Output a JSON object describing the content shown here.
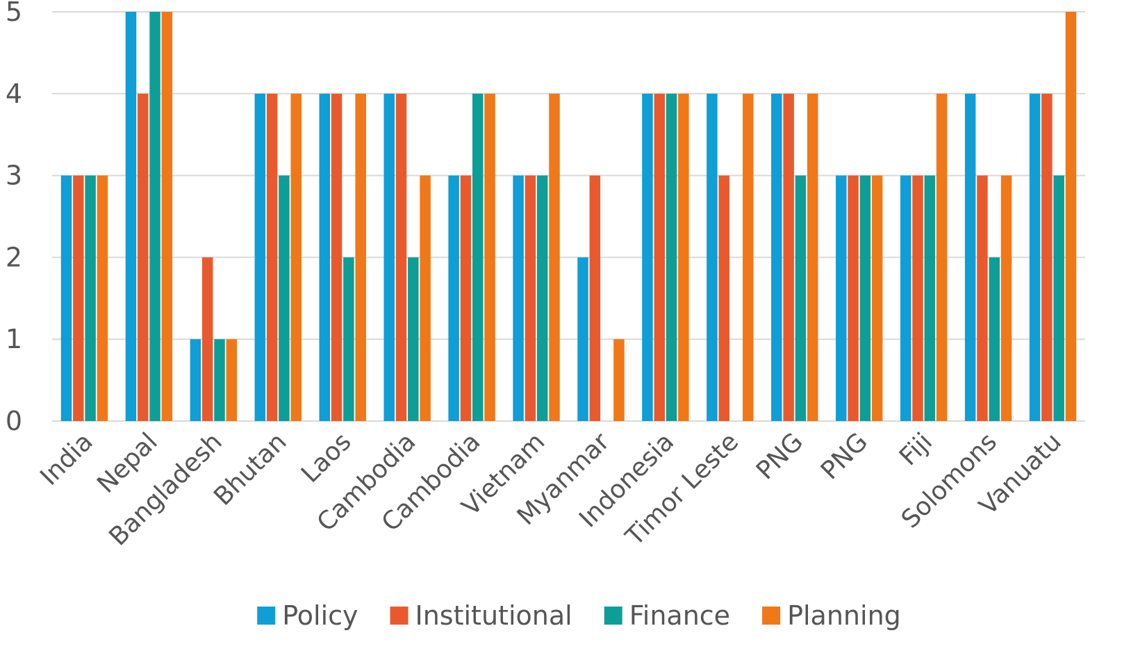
{
  "chart_data": {
    "type": "bar",
    "title": "",
    "xlabel": "",
    "ylabel": "",
    "ylim": [
      0,
      5
    ],
    "yticks": [
      0,
      1,
      2,
      3,
      4,
      5
    ],
    "grid": true,
    "legend_position": "bottom",
    "categories": [
      "India",
      "Nepal",
      "Bangladesh",
      "Bhutan",
      "Laos",
      "Cambodia",
      "Cambodia",
      "Vietnam",
      "Myanmar",
      "Indonesia",
      "Timor Leste",
      "PNG",
      "PNG",
      "Fiji",
      "Solomons",
      "Vanuatu"
    ],
    "series": [
      {
        "name": "Policy",
        "color": "#0f9ed5",
        "values": [
          3,
          5,
          1,
          4,
          4,
          4,
          3,
          3,
          2,
          4,
          4,
          4,
          3,
          3,
          4,
          4
        ]
      },
      {
        "name": "Institutional",
        "color": "#e85a2d",
        "values": [
          3,
          4,
          2,
          4,
          4,
          4,
          3,
          3,
          3,
          4,
          3,
          4,
          3,
          3,
          3,
          4
        ]
      },
      {
        "name": "Finance",
        "color": "#0d9e98",
        "values": [
          3,
          5,
          1,
          3,
          2,
          2,
          4,
          3,
          0,
          4,
          0,
          3,
          3,
          3,
          2,
          3
        ]
      },
      {
        "name": "Planning",
        "color": "#f07818",
        "values": [
          3,
          5,
          1,
          4,
          4,
          3,
          4,
          4,
          1,
          4,
          4,
          4,
          3,
          4,
          3,
          5
        ]
      }
    ]
  }
}
